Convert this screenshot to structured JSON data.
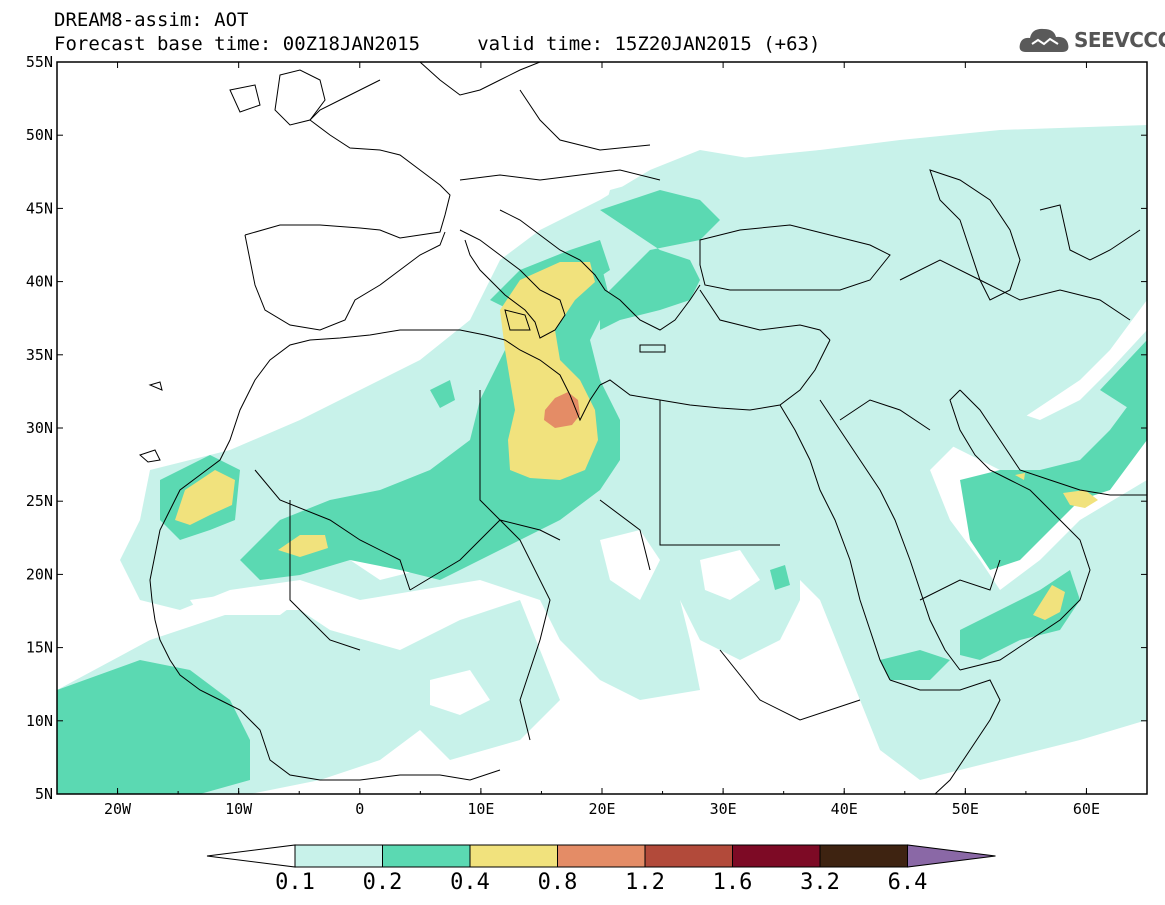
{
  "header": {
    "line1": "DREAM8-assim: AOT",
    "line2": "Forecast base time: 00Z18JAN2015     valid time: 15Z20JAN2015 (+63)"
  },
  "logo": {
    "text": "SEEVCCC",
    "icon": "cloud-icon"
  },
  "map": {
    "lon_range": [
      -25,
      65
    ],
    "lat_range": [
      5,
      55
    ],
    "x_ticks": [
      "20W",
      "10W",
      "0",
      "10E",
      "20E",
      "30E",
      "40E",
      "50E",
      "60E"
    ],
    "y_ticks": [
      "55N",
      "50N",
      "45N",
      "40N",
      "35N",
      "30N",
      "25N",
      "20N",
      "15N",
      "10N",
      "5N"
    ]
  },
  "colorbar": {
    "labels": [
      "0.1",
      "0.2",
      "0.4",
      "0.8",
      "1.2",
      "1.6",
      "3.2",
      "6.4"
    ],
    "colors": [
      "#ffffff",
      "#c8f2ea",
      "#5bd9b2",
      "#f1e27d",
      "#e48c66",
      "#b24a3a",
      "#7d0a25",
      "#3e2311",
      "#8a68a6"
    ]
  },
  "colors": {
    "band1": "#c8f2ea",
    "band2": "#5bd9b2",
    "band3": "#f1e27d",
    "band4": "#e48c66"
  }
}
